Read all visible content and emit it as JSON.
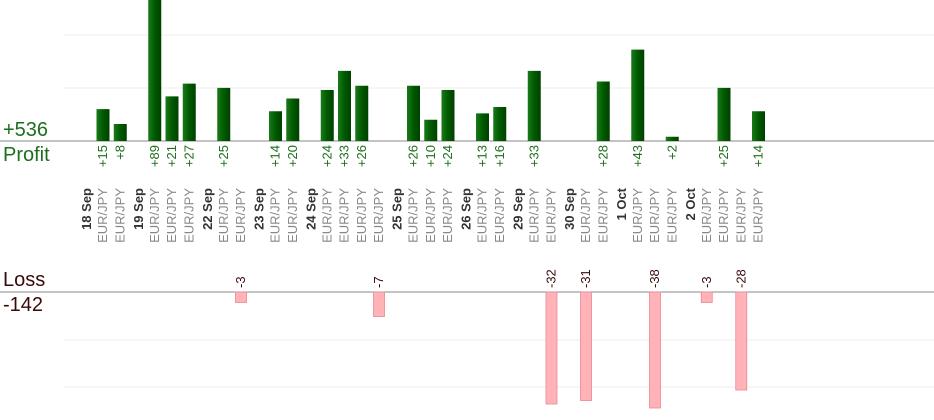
{
  "chart_data": {
    "type": "bar",
    "profit_total": "+536",
    "profit_label": "Profit",
    "loss_label": "Loss",
    "loss_total": "-142",
    "colors": {
      "profit_bar_dark": "#004d00",
      "profit_bar_light": "#1a7a1a",
      "profit_text": "#1e6e1e",
      "loss_bar": "#ffb3b8",
      "loss_bar_border": "#e88890",
      "loss_text": "#3a0a0a",
      "date_text": "#333333",
      "pair_text": "#888888"
    },
    "dates": [
      "18 Sep",
      "19 Sep",
      "22 Sep",
      "23 Sep",
      "24 Sep",
      "25 Sep",
      "26 Sep",
      "29 Sep",
      "30 Sep",
      "1 Oct",
      "2 Oct"
    ],
    "trades": [
      {
        "date": "18 Sep",
        "pair": "EUR/JPY",
        "label": "+15",
        "value": 15
      },
      {
        "date": "18 Sep",
        "pair": "EUR/JPY",
        "label": "+8",
        "value": 8
      },
      {
        "date": "19 Sep",
        "pair": "EUR/JPY",
        "label": "+89",
        "value": 89
      },
      {
        "date": "19 Sep",
        "pair": "EUR/JPY",
        "label": "+21",
        "value": 21
      },
      {
        "date": "19 Sep",
        "pair": "EUR/JPY",
        "label": "+27",
        "value": 27
      },
      {
        "date": "22 Sep",
        "pair": "EUR/JPY",
        "label": "+25",
        "value": 25
      },
      {
        "date": "22 Sep",
        "pair": "EUR/JPY",
        "label": "-3",
        "value": -3
      },
      {
        "date": "23 Sep",
        "pair": "EUR/JPY",
        "label": "+14",
        "value": 14
      },
      {
        "date": "23 Sep",
        "pair": "EUR/JPY",
        "label": "+20",
        "value": 20
      },
      {
        "date": "24 Sep",
        "pair": "EUR/JPY",
        "label": "+24",
        "value": 24
      },
      {
        "date": "24 Sep",
        "pair": "EUR/JPY",
        "label": "+33",
        "value": 33
      },
      {
        "date": "24 Sep",
        "pair": "EUR/JPY",
        "label": "+26",
        "value": 26
      },
      {
        "date": "24 Sep",
        "pair": "EUR/JPY",
        "label": "-7",
        "value": -7
      },
      {
        "date": "25 Sep",
        "pair": "EUR/JPY",
        "label": "+26",
        "value": 26
      },
      {
        "date": "25 Sep",
        "pair": "EUR/JPY",
        "label": "+10",
        "value": 10
      },
      {
        "date": "25 Sep",
        "pair": "EUR/JPY",
        "label": "+24",
        "value": 24
      },
      {
        "date": "26 Sep",
        "pair": "EUR/JPY",
        "label": "+13",
        "value": 13
      },
      {
        "date": "26 Sep",
        "pair": "EUR/JPY",
        "label": "+16",
        "value": 16
      },
      {
        "date": "29 Sep",
        "pair": "EUR/JPY",
        "label": "+33",
        "value": 33
      },
      {
        "date": "29 Sep",
        "pair": "EUR/JPY",
        "label": "-32",
        "value": -32
      },
      {
        "date": "30 Sep",
        "pair": "EUR/JPY",
        "label": "-31",
        "value": -31
      },
      {
        "date": "30 Sep",
        "pair": "EUR/JPY",
        "label": "+28",
        "value": 28
      },
      {
        "date": "1 Oct",
        "pair": "EUR/JPY",
        "label": "+43",
        "value": 43
      },
      {
        "date": "1 Oct",
        "pair": "EUR/JPY",
        "label": "-38",
        "value": -38
      },
      {
        "date": "1 Oct",
        "pair": "EUR/JPY",
        "label": "+2",
        "value": 2
      },
      {
        "date": "2 Oct",
        "pair": "EUR/JPY",
        "label": "-3",
        "value": -3
      },
      {
        "date": "2 Oct",
        "pair": "EUR/JPY",
        "label": "+25",
        "value": 25
      },
      {
        "date": "2 Oct",
        "pair": "EUR/JPY",
        "label": "-28",
        "value": -28
      },
      {
        "date": "2 Oct",
        "pair": "EUR/JPY",
        "label": "+14",
        "value": 14
      }
    ],
    "grid": true
  }
}
